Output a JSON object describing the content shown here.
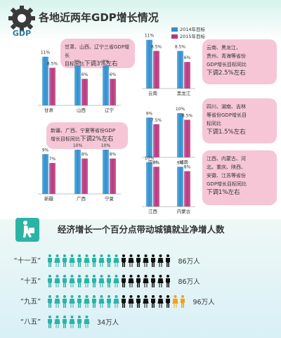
{
  "header": {
    "gear_label": "GDP",
    "title": "各地近两年GDP增长情况"
  },
  "legend": {
    "series2014": "2014年目标",
    "series2015": "2015年目标"
  },
  "colors": {
    "bar2014": "#2f8fd0",
    "bar2015": "#b8377e",
    "callout": "#f6c6d7",
    "teal": "#2bb3a6",
    "black": "#111111",
    "orange": "#f2a01b"
  },
  "chart_data": [
    {
      "type": "bar",
      "series": [
        {
          "name": "2014年目标",
          "values": [
            11,
            9,
            9
          ]
        },
        {
          "name": "2015年目标",
          "values": [
            8.5,
            6,
            6
          ]
        }
      ],
      "categories": [
        "甘肃",
        "山西",
        "辽宁"
      ],
      "data_labels": [
        [
          "11%",
          "9%",
          "9%"
        ],
        [
          "8.5%",
          "6%",
          "6%"
        ]
      ]
    },
    {
      "type": "bar",
      "series": [
        {
          "name": "2014年目标",
          "values": [
            11,
            8.5
          ]
        },
        {
          "name": "2015年目标",
          "values": [
            8.5,
            6
          ]
        }
      ],
      "categories": [
        "云南",
        "黑龙江"
      ],
      "data_labels": [
        [
          "11%",
          "8.5%"
        ],
        [
          "8.5%",
          "6%"
        ]
      ]
    },
    {
      "type": "bar",
      "series": [
        {
          "name": "2014年目标",
          "values": [
            9,
            10
          ]
        },
        {
          "name": "2015年目标",
          "values": [
            7.5,
            8.5
          ]
        }
      ],
      "categories": [
        "四川",
        "湖南"
      ],
      "data_labels": [
        [
          "9%",
          "10%"
        ],
        [
          "7.5%",
          "8.5%"
        ]
      ]
    },
    {
      "type": "bar",
      "series": [
        {
          "name": "2014年目标",
          "values": [
            9,
            10,
            10
          ]
        },
        {
          "name": "2015年目标",
          "values": [
            7,
            8,
            8
          ]
        }
      ],
      "categories": [
        "新疆",
        "广西",
        "宁夏"
      ],
      "data_labels": [
        [
          "9%",
          "10%",
          "10%"
        ],
        [
          "7%",
          "8%",
          "8%"
        ]
      ]
    },
    {
      "type": "bar",
      "series": [
        {
          "name": "2014年目标",
          "values": [
            10,
            9
          ]
        },
        {
          "name": "2015年目标",
          "values": [
            9,
            8
          ]
        }
      ],
      "categories": [
        "江西",
        "内蒙古"
      ],
      "data_labels": [
        [
          "10%",
          "9%"
        ],
        [
          "9%",
          "8%"
        ]
      ]
    },
    {
      "type": "pictograph",
      "title": "经济增长一个百分点带动城镇就业净增人数",
      "categories": [
        "“十一五”",
        "“十五”",
        "“九五”",
        "“八五”"
      ],
      "values": [
        86,
        86,
        96,
        34
      ],
      "value_labels": [
        "86万人",
        "86万人",
        "96万人",
        "34万人"
      ]
    }
  ],
  "callouts": [
    {
      "line1": "甘肃、山西、辽宁三省GDP增长",
      "line2": "目标同比",
      "accent": "下调3%左右"
    },
    {
      "line1": "云南、黑龙江、",
      "line2": "贵州、青海等省份",
      "line3": "GDP增长目标同比",
      "accent": "下调2.5%左右"
    },
    {
      "line1": "四川、湖南、吉林",
      "line2": "等省份GDP增长目",
      "line3": "标同比",
      "accent": "下调1.5%左右"
    },
    {
      "line1": "新疆、广西、宁夏等省份GDP",
      "line2": "增长目标同比",
      "accent": "下调2%左右"
    },
    {
      "line1": "江西、内蒙古、河",
      "line2": "北、重庆、陕西、",
      "line3": "安徽、江苏等省份",
      "line4": "GDP增长目标同比",
      "accent": "下调1%左右"
    }
  ]
}
